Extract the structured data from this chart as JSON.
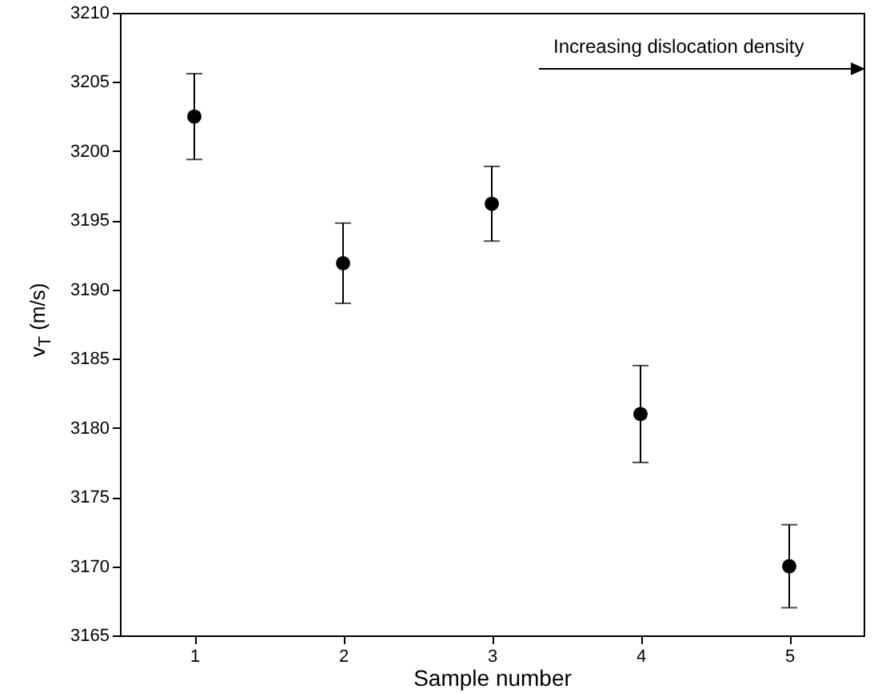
{
  "chart_data": {
    "type": "scatter",
    "xlabel": "Sample number",
    "ylabel": "v$_{T}$ (m/s)",
    "x": [
      1,
      2,
      3,
      4,
      5
    ],
    "values": [
      3202.5,
      3191.9,
      3196.2,
      3181.0,
      3170.0
    ],
    "errors": [
      3.1,
      2.9,
      2.7,
      3.5,
      3.0
    ],
    "color": "#000000",
    "marker": "circle",
    "xlim": [
      0.5,
      5.5
    ],
    "xticks": [
      1,
      2,
      3,
      4,
      5
    ],
    "ylim": [
      3165,
      3210
    ],
    "yticks": [
      3165,
      3170,
      3175,
      3180,
      3185,
      3190,
      3195,
      3200,
      3205,
      3210
    ],
    "grid": false,
    "annotations": [
      "Increasing dislocation density"
    ]
  }
}
